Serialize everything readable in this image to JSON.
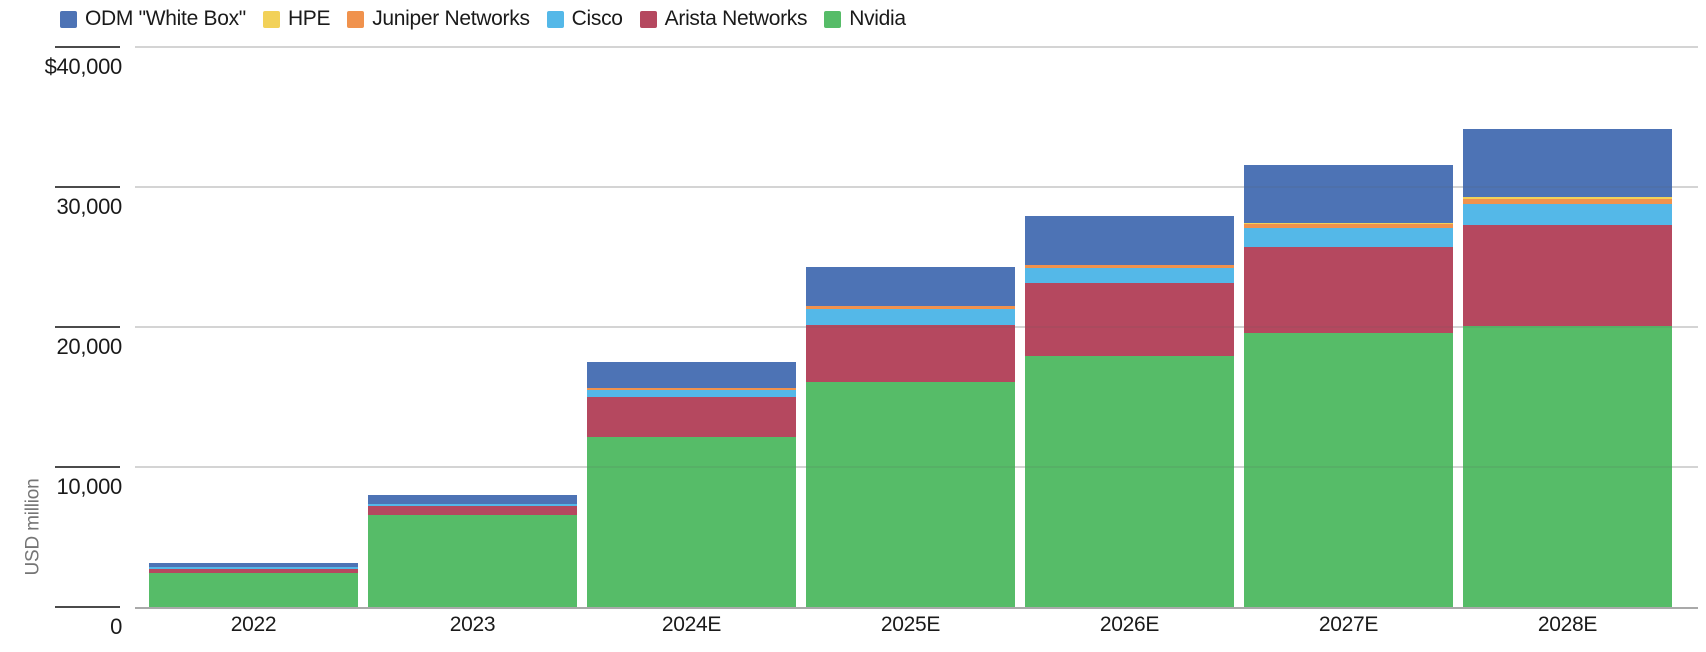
{
  "chart_data": {
    "type": "bar",
    "stacked": true,
    "title": "",
    "ylabel": "USD million",
    "grid": "horizontal",
    "legend_position": "top-left",
    "categories": [
      "2022",
      "2023",
      "2024E",
      "2025E",
      "2026E",
      "2027E",
      "2028E"
    ],
    "series": [
      {
        "name": "ODM \"White Box\"",
        "color": "#4d73b5",
        "values": [
          280,
          640,
          1860,
          2790,
          3500,
          4140,
          4860
        ]
      },
      {
        "name": "HPE",
        "color": "#f2d158",
        "values": [
          10,
          10,
          15,
          20,
          30,
          50,
          140
        ]
      },
      {
        "name": "Juniper Networks",
        "color": "#f0924d",
        "values": [
          25,
          20,
          140,
          210,
          210,
          310,
          360
        ]
      },
      {
        "name": "Cisco",
        "color": "#54b8e8",
        "values": [
          80,
          140,
          500,
          1140,
          1070,
          1360,
          1500
        ]
      },
      {
        "name": "Arista Networks",
        "color": "#b5485f",
        "values": [
          350,
          640,
          2860,
          4070,
          5210,
          6140,
          7210
        ]
      },
      {
        "name": "Nvidia",
        "color": "#56bc68",
        "values": [
          2400,
          6560,
          12140,
          16070,
          17930,
          19570,
          20070
        ]
      }
    ],
    "totals": [
      3145,
      8010,
      17515,
      24300,
      27950,
      31570,
      34140
    ],
    "y_axis": {
      "min": 0,
      "max": 40000,
      "ticks": [
        {
          "value": 0,
          "label": "0"
        },
        {
          "value": 10000,
          "label": "10,000"
        },
        {
          "value": 20000,
          "label": "20,000"
        },
        {
          "value": 30000,
          "label": "30,000"
        },
        {
          "value": 40000,
          "label": "$40,000"
        }
      ]
    },
    "colors": {
      "gridline": "#e5e5e5",
      "axis_baseline": "#a9a9a9",
      "tick_mark": "#4b4b4b",
      "label_text": "#1a1a1a",
      "axis_title_text": "#757575"
    }
  }
}
